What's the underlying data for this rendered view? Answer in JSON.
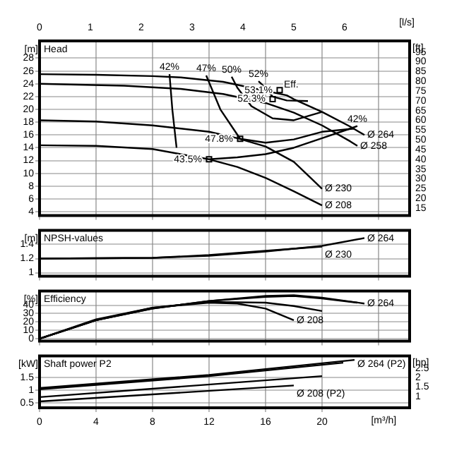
{
  "chart_data": [
    {
      "type": "line",
      "title": "Head",
      "ylabel": "[m]",
      "y2label": "[ft]",
      "x2label": "[l/s]",
      "xlim": [
        0,
        26.2
      ],
      "ylim": [
        3.4,
        30.7
      ],
      "yticks": [
        4,
        6,
        8,
        10,
        12,
        14,
        16,
        18,
        20,
        22,
        24,
        26,
        28
      ],
      "y2lim": [
        11.2,
        100.7
      ],
      "y2ticks": [
        15,
        20,
        25,
        30,
        35,
        40,
        45,
        50,
        55,
        60,
        65,
        70,
        75,
        80,
        85,
        90,
        95
      ],
      "x2lim": [
        0,
        7.28
      ],
      "x2ticks": [
        0,
        1,
        2,
        3,
        4,
        5,
        6
      ],
      "xticks": [
        0,
        4,
        8,
        12,
        16,
        20,
        24
      ],
      "tick_labels": "y",
      "grid": true,
      "legend": false,
      "marker": "none",
      "line_style": "solid",
      "series": [
        {
          "name": "Ø 264",
          "color": "#000000",
          "x": [
            0,
            4,
            8,
            10,
            13,
            17.5,
            18,
            20,
            22,
            23
          ],
          "values": [
            25.5,
            25.4,
            25.2,
            25,
            24.3,
            22.2,
            21.6,
            19.6,
            17.3,
            16
          ]
        },
        {
          "name": "Ø 258",
          "color": "#000000",
          "x": [
            0,
            6,
            10,
            13,
            16,
            18,
            20,
            22,
            22.5
          ],
          "values": [
            24,
            23.7,
            23.2,
            22.4,
            21,
            19.5,
            17.5,
            15,
            14.3
          ]
        },
        {
          "name": "Ø 230",
          "color": "#000000",
          "x": [
            0,
            4,
            8,
            12,
            14,
            16,
            18,
            20
          ],
          "values": [
            18.3,
            18.1,
            17.5,
            16.5,
            15.5,
            14.2,
            11.8,
            7.6
          ]
        },
        {
          "name": "Ø 208",
          "color": "#000000",
          "x": [
            0,
            4,
            8,
            12,
            14,
            16,
            18,
            20
          ],
          "values": [
            14.4,
            14.3,
            13.8,
            12.2,
            11,
            9.3,
            7.2,
            5
          ]
        },
        {
          "name": "42%",
          "color": "#000000",
          "x": [
            9.7,
            9.4,
            9.2
          ],
          "values": [
            14,
            20,
            25.5
          ]
        },
        {
          "name": "47%",
          "color": "#000000",
          "x": [
            22.3,
            20,
            18,
            16,
            14.2,
            12.8,
            11.8
          ],
          "values": [
            17,
            16.5,
            15.3,
            14.8,
            15.4,
            20,
            25.3
          ]
        },
        {
          "name": "50%",
          "color": "#000000",
          "x": [
            20,
            18,
            16.5,
            15,
            14,
            13.6
          ],
          "values": [
            19.6,
            18.3,
            18.6,
            20.5,
            23.4,
            25.1
          ]
        },
        {
          "name": "52%",
          "color": "#000000",
          "x": [
            19,
            17.5,
            16.5,
            15.7,
            15.5
          ],
          "values": [
            21.3,
            21.4,
            22,
            24,
            24.4
          ]
        },
        {
          "name": "42%",
          "color": "#000000",
          "x": [
            12,
            14,
            16,
            18,
            20,
            22,
            22.5
          ],
          "values": [
            12.2,
            12.5,
            13,
            14,
            15.5,
            17,
            17.4
          ]
        },
        {
          "type": "scatter",
          "marker": "square",
          "color": "#000000",
          "x": [
            17,
            16.5,
            14.2,
            12
          ],
          "values": [
            23,
            21.6,
            15.4,
            12.2
          ]
        }
      ],
      "annotations": [
        {
          "text": "53.1%",
          "x": 17,
          "y": 23
        },
        {
          "text": "Eff.",
          "x": 17,
          "y": 23
        },
        {
          "text": "52.3%",
          "x": 16.5,
          "y": 21.6
        },
        {
          "text": "47.8%",
          "x": 14.2,
          "y": 15.4
        },
        {
          "text": "43.5%",
          "x": 12,
          "y": 12.2
        }
      ]
    },
    {
      "type": "line",
      "title": "NPSH-values",
      "ylabel": "[m]",
      "xlim": [
        0,
        26.2
      ],
      "ylim": [
        0.95,
        1.6
      ],
      "yticks": [
        1,
        1.2,
        1.4
      ],
      "xticks": [
        0,
        4,
        8,
        12,
        16,
        20,
        24
      ],
      "tick_labels": "y",
      "grid": true,
      "legend": false,
      "marker": "none",
      "line_style": "solid",
      "series": [
        {
          "name": "Ø 264",
          "color": "#000000",
          "x": [
            0,
            8,
            12,
            16,
            20,
            23
          ],
          "values": [
            1.2,
            1.21,
            1.24,
            1.3,
            1.38,
            1.49
          ]
        },
        {
          "name": "Ø 230",
          "color": "#000000",
          "x": [
            0,
            8,
            12,
            16,
            20
          ],
          "values": [
            1.2,
            1.21,
            1.25,
            1.31,
            1.37
          ]
        }
      ]
    },
    {
      "type": "line",
      "title": "Efficiency",
      "ylabel": "[%]",
      "xlim": [
        0,
        26.2
      ],
      "ylim": [
        -3,
        57
      ],
      "yticks": [
        0,
        10,
        20,
        30,
        40
      ],
      "xticks": [
        0,
        4,
        8,
        12,
        16,
        20,
        24
      ],
      "tick_labels": "y",
      "grid": true,
      "legend": false,
      "marker": "none",
      "line_style": "solid",
      "series": [
        {
          "name": "Ø 264",
          "color": "#000000",
          "x": [
            0,
            4,
            8,
            12,
            16,
            18,
            20,
            23
          ],
          "values": [
            0,
            22,
            36,
            45,
            51,
            52,
            49,
            42
          ]
        },
        {
          "color": "#000000",
          "x": [
            0,
            4,
            8,
            12,
            16,
            18,
            20,
            22.5
          ],
          "values": [
            0,
            22,
            36,
            45,
            50,
            51,
            48,
            43
          ]
        },
        {
          "color": "#000000",
          "x": [
            0,
            4,
            8,
            12,
            16,
            18,
            20
          ],
          "values": [
            0,
            22,
            37,
            44,
            43,
            39,
            33
          ]
        },
        {
          "name": "Ø 208",
          "color": "#000000",
          "x": [
            0,
            4,
            8,
            12,
            14,
            16,
            18
          ],
          "values": [
            0,
            23,
            37,
            43,
            42,
            36,
            22
          ]
        }
      ]
    },
    {
      "type": "line",
      "title": "Shaft power P2",
      "ylabel": "[kW]",
      "y2label": "[hp]",
      "xlabel": "[m³/h]",
      "xlim": [
        0,
        26.2
      ],
      "ylim": [
        0.3,
        2.35
      ],
      "yticks": [
        0.5,
        1,
        1.5
      ],
      "y2lim": [
        0.4,
        3.15
      ],
      "y2ticks": [
        1,
        1.5,
        2,
        2.5
      ],
      "xticks": [
        0,
        4,
        8,
        12,
        16,
        20
      ],
      "grid": true,
      "legend": false,
      "marker": "none",
      "line_style": "solid",
      "series": [
        {
          "name": "Ø 264 (P2)",
          "color": "#000000",
          "x": [
            0,
            12,
            22.3
          ],
          "values": [
            1.08,
            1.6,
            2.19
          ]
        },
        {
          "color": "#000000",
          "x": [
            0,
            12,
            21.5
          ],
          "values": [
            1.03,
            1.55,
            2.08
          ]
        },
        {
          "color": "#000000",
          "x": [
            0,
            20
          ],
          "values": [
            0.72,
            1.55
          ]
        },
        {
          "name": "Ø 208 (P2)",
          "color": "#000000",
          "x": [
            0,
            18
          ],
          "values": [
            0.55,
            1.18
          ]
        }
      ]
    }
  ]
}
